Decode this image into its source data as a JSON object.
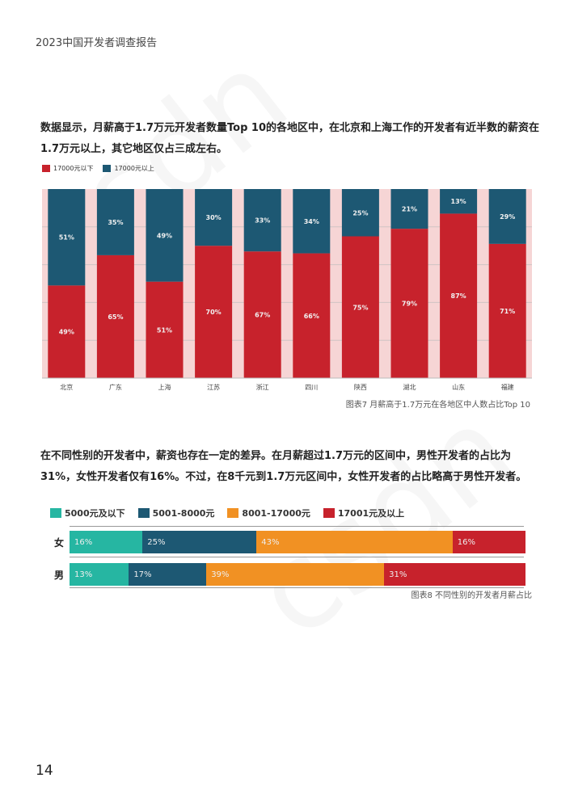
{
  "header": {
    "title": "2023中国开发者调查报告"
  },
  "para1": "数据显示，月薪高于1.7万元开发者数量Top 10的各地区中，在北京和上海工作的开发者有近半数的薪资在1.7万元以上，其它地区仅占三成左右。",
  "para2": "在不同性别的开发者中，薪资也存在一定的差异。在月薪超过1.7万元的区间中，男性开发者的占比为31%，女性开发者仅有16%。不过，在8千元到1.7万元区间中，女性开发者的占比略高于男性开发者。",
  "colors": {
    "red": "#c7222c",
    "blue": "#1d5873",
    "teal": "#26b6a2",
    "orange": "#f19123",
    "bg_band": "#f6d5d5"
  },
  "chart_data": [
    {
      "type": "bar",
      "stacked": true,
      "categories": [
        "北京",
        "广东",
        "上海",
        "江苏",
        "浙江",
        "四川",
        "陕西",
        "湖北",
        "山东",
        "福建"
      ],
      "series": [
        {
          "name": "17000元以下",
          "values": [
            49,
            65,
            51,
            70,
            67,
            66,
            75,
            79,
            87,
            71
          ],
          "color": "#c7222c"
        },
        {
          "name": "17000元以上",
          "values": [
            51,
            35,
            49,
            30,
            33,
            34,
            25,
            21,
            13,
            29
          ],
          "color": "#1d5873"
        }
      ],
      "ylim": [
        0,
        100
      ],
      "grid": true,
      "legend": "top-left",
      "caption": "图表7 月薪高于1.7万元在各地区中人数占比Top 10"
    },
    {
      "type": "bar",
      "orientation": "horizontal",
      "stacked": true,
      "categories": [
        "女",
        "男"
      ],
      "series": [
        {
          "name": "5000元及以下",
          "values": [
            16,
            13
          ],
          "color": "#26b6a2"
        },
        {
          "name": "5001-8000元",
          "values": [
            25,
            17
          ],
          "color": "#1d5873"
        },
        {
          "name": "8001-17000元",
          "values": [
            43,
            39
          ],
          "color": "#f19123"
        },
        {
          "name": "17001元及以上",
          "values": [
            16,
            31
          ],
          "color": "#c7222c"
        }
      ],
      "legend": "top-left",
      "caption": "图表8 不同性别的开发者月薪占比"
    }
  ],
  "page_number": "14"
}
